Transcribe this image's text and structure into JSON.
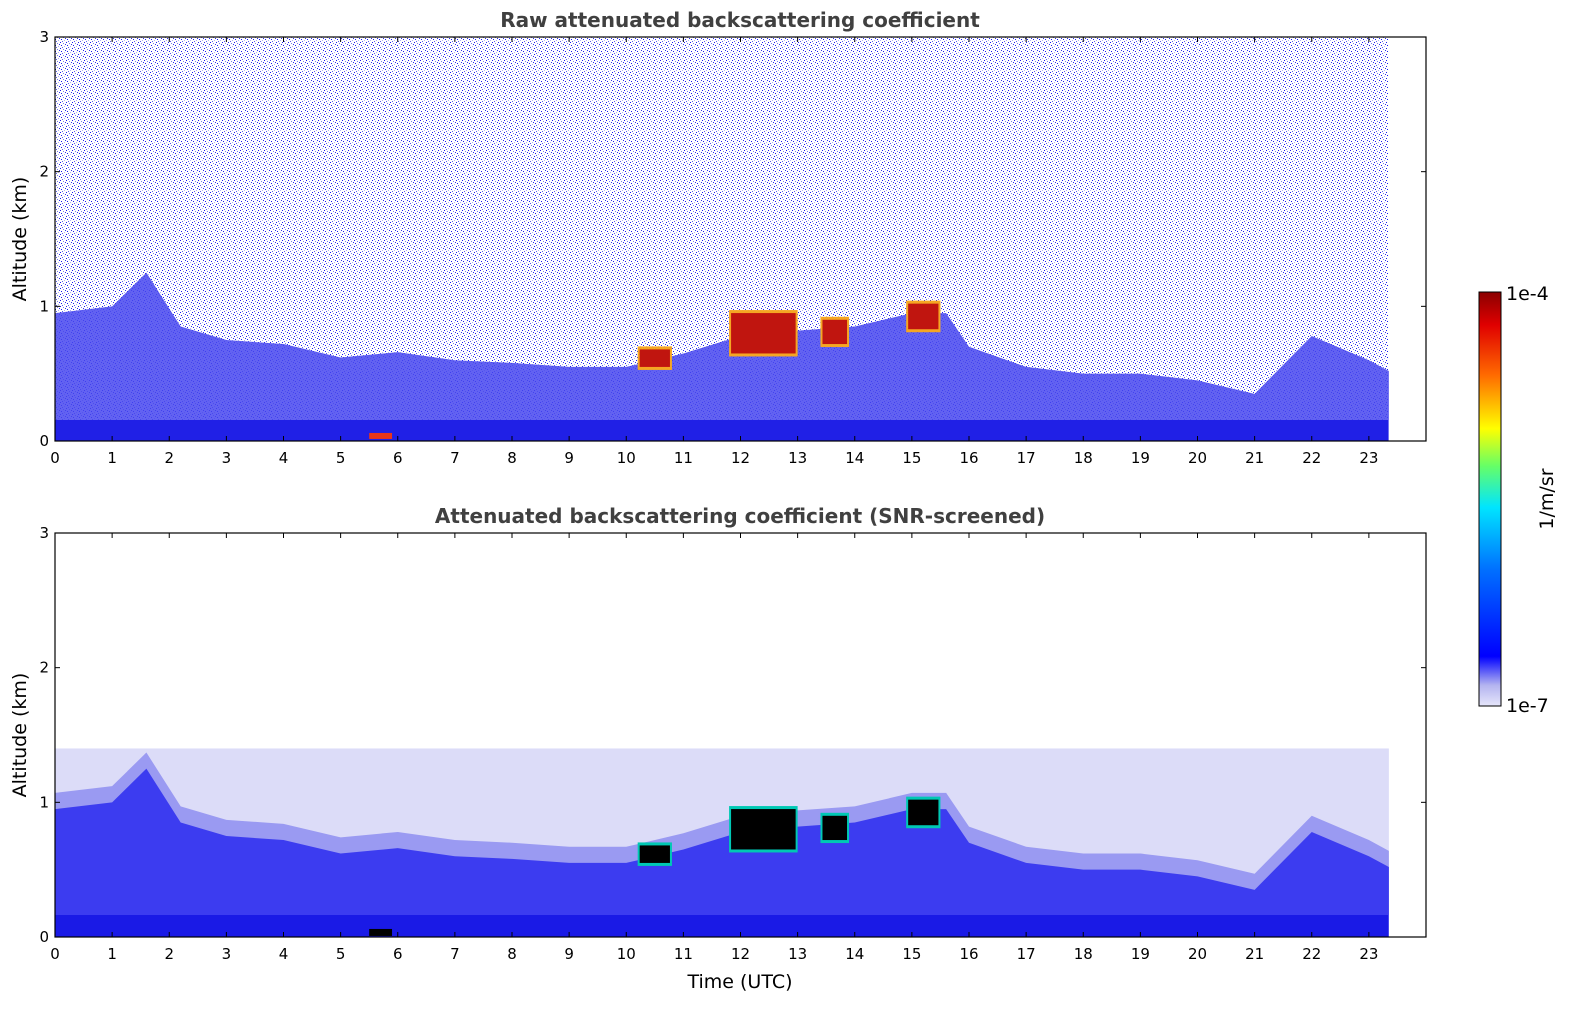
{
  "chart_data": [
    {
      "type": "heatmap",
      "title": "Raw attenuated backscattering coefficient",
      "xlabel": "",
      "ylabel": "Altitude (km)",
      "xlim": [
        0,
        24
      ],
      "ylim": [
        0,
        3
      ],
      "x_ticks": [
        "0",
        "1",
        "2",
        "3",
        "4",
        "5",
        "6",
        "7",
        "8",
        "9",
        "10",
        "11",
        "12",
        "13",
        "14",
        "15",
        "16",
        "17",
        "18",
        "19",
        "20",
        "21",
        "22",
        "23"
      ],
      "y_ticks": [
        "0",
        "1",
        "2",
        "3"
      ],
      "data_end_hour": 23.35,
      "mixing_layer_top_km": [
        [
          0,
          0.95
        ],
        [
          1,
          1.0
        ],
        [
          1.6,
          1.25
        ],
        [
          2.2,
          0.85
        ],
        [
          3,
          0.75
        ],
        [
          4,
          0.72
        ],
        [
          5,
          0.62
        ],
        [
          6,
          0.66
        ],
        [
          7,
          0.6
        ],
        [
          8,
          0.58
        ],
        [
          9,
          0.55
        ],
        [
          10,
          0.55
        ],
        [
          11,
          0.65
        ],
        [
          12,
          0.78
        ],
        [
          13,
          0.82
        ],
        [
          14,
          0.85
        ],
        [
          15,
          0.95
        ],
        [
          15.6,
          0.95
        ],
        [
          16,
          0.7
        ],
        [
          17,
          0.55
        ],
        [
          18,
          0.5
        ],
        [
          19,
          0.5
        ],
        [
          20,
          0.45
        ],
        [
          21,
          0.35
        ],
        [
          22,
          0.78
        ],
        [
          23,
          0.6
        ],
        [
          23.35,
          0.52
        ]
      ],
      "cloud_layers": [
        {
          "start": 10.2,
          "end": 10.8,
          "base_km": 0.55,
          "top_km": 0.68
        },
        {
          "start": 11.8,
          "end": 13.0,
          "base_km": 0.65,
          "top_km": 0.95
        },
        {
          "start": 13.4,
          "end": 13.9,
          "base_km": 0.72,
          "top_km": 0.9
        },
        {
          "start": 14.9,
          "end": 15.5,
          "base_km": 0.83,
          "top_km": 1.02
        }
      ],
      "surface_hotspot": {
        "start": 5.5,
        "end": 5.9,
        "altitude_km": 0.03
      }
    },
    {
      "type": "heatmap",
      "title": "Attenuated backscattering coefficient (SNR-screened)",
      "xlabel": "Time (UTC)",
      "ylabel": "Altitude (km)",
      "xlim": [
        0,
        24
      ],
      "ylim": [
        0,
        3
      ],
      "x_ticks": [
        "0",
        "1",
        "2",
        "3",
        "4",
        "5",
        "6",
        "7",
        "8",
        "9",
        "10",
        "11",
        "12",
        "13",
        "14",
        "15",
        "16",
        "17",
        "18",
        "19",
        "20",
        "21",
        "22",
        "23"
      ],
      "y_ticks": [
        "0",
        "1",
        "2",
        "3"
      ],
      "data_end_hour": 23.35,
      "residual_layer_top_km": 1.4
    }
  ],
  "colorbar": {
    "max_label": "1e-4",
    "min_label": "1e-7",
    "unit_label": "1/m/sr",
    "scale": "log",
    "colormap": [
      "#e6e6fa",
      "#0000ff",
      "#00e5ff",
      "#ffff00",
      "#ff4500",
      "#8b0000"
    ]
  },
  "colors": {
    "background": "#ffffff",
    "faint": "#dcdcf5",
    "light": "#8c8cf0",
    "mid": "#3c3cf0",
    "strong": "#0a0ae6",
    "cloud": "#8b0000"
  }
}
